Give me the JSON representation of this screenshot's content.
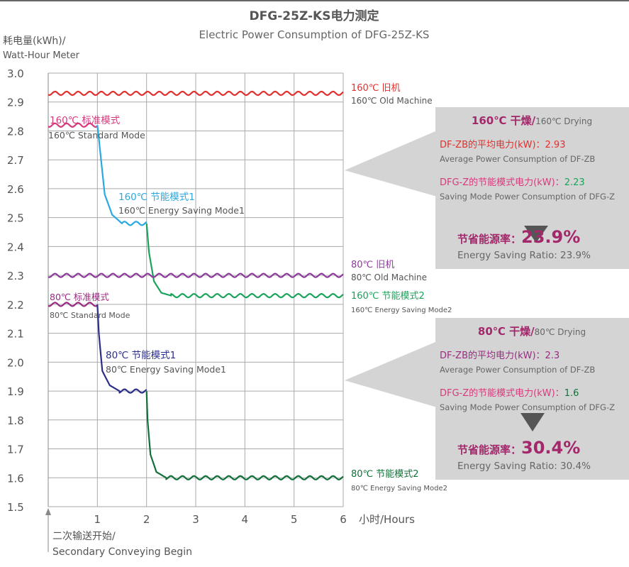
{
  "chart_data": {
    "type": "line",
    "title": "DFG-25Z-KS电力测定",
    "subtitle": "Electric Power Consumption of DFG-25Z-KS",
    "ylabel_line1": "耗电量(kWh)/",
    "ylabel_line2": "Watt-Hour Meter",
    "xlabel": "小时/Hours",
    "xlim": [
      0,
      6
    ],
    "ylim": [
      1.5,
      3.0
    ],
    "x_ticks": [
      "1",
      "2",
      "3",
      "4",
      "5",
      "6"
    ],
    "y_ticks": [
      "3.0",
      "2.9",
      "2.8",
      "2.7",
      "2.6",
      "2.5",
      "2.4",
      "2.3",
      "2.2",
      "2.1",
      "2.0",
      "1.9",
      "1.8",
      "1.7",
      "1.6",
      "1.5"
    ],
    "grid": true,
    "start_note_line1": "二次输送开始/",
    "start_note_line2": "Secondary Conveying Begin",
    "series": [
      {
        "label_cn": "160℃ 旧机",
        "label_en": "160℃ Old Machine",
        "color": "#e2302e",
        "x": [
          0,
          6
        ],
        "y": [
          2.93,
          2.93
        ]
      },
      {
        "label_cn": "160℃  标准模式",
        "label_en": "160℃ Standard Mode",
        "color": "#d63a7c",
        "x": [
          0,
          1
        ],
        "y": [
          2.82,
          2.82
        ]
      },
      {
        "label_cn": "160℃ 节能模式1",
        "label_en": "160℃ Energy Saving Mode1",
        "color": "#2aa9e0",
        "x": [
          1,
          1.05,
          1.15,
          1.3,
          1.5,
          1.7,
          2
        ],
        "y": [
          2.82,
          2.74,
          2.58,
          2.51,
          2.48,
          2.48,
          2.48
        ]
      },
      {
        "label_cn": "160℃ 节能模式2",
        "label_en": "160℃ Energy Saving Mode2",
        "color": "#1aa35a",
        "x": [
          2,
          2.05,
          2.15,
          2.3,
          2.5,
          3,
          6
        ],
        "y": [
          2.48,
          2.38,
          2.28,
          2.24,
          2.23,
          2.23,
          2.23
        ]
      },
      {
        "label_cn": "80℃ 旧机",
        "label_en": "80℃ Old Machine",
        "color": "#8c3b9a",
        "x": [
          0,
          6
        ],
        "y": [
          2.3,
          2.3
        ]
      },
      {
        "label_cn": "80℃ 标准模式",
        "label_en": "80℃ Standard Mode",
        "color": "#9a2a82",
        "x": [
          0,
          1
        ],
        "y": [
          2.2,
          2.2
        ]
      },
      {
        "label_cn": "80℃ 节能模式1",
        "label_en": "80℃ Energy Saving Mode1",
        "color": "#2b2f8a",
        "x": [
          1,
          1.03,
          1.1,
          1.25,
          1.45,
          1.7,
          2
        ],
        "y": [
          2.2,
          2.1,
          1.97,
          1.92,
          1.9,
          1.9,
          1.9
        ]
      },
      {
        "label_cn": "80℃ 节能模式2",
        "label_en": "80℃ Energy Saving Mode2",
        "color": "#12703a",
        "x": [
          2,
          2.02,
          2.08,
          2.2,
          2.4,
          3,
          6
        ],
        "y": [
          1.9,
          1.8,
          1.68,
          1.62,
          1.6,
          1.6,
          1.6
        ]
      }
    ],
    "callouts": [
      {
        "heading_cn": "160℃ 干燥/",
        "heading_en": "160℃ Drying",
        "avg_label_cn": "DF-ZB的平均电力(kW)：",
        "avg_value": "2.93",
        "avg_label_en": "Average Power Consumption of DF-ZB",
        "saving_label_cn": "DFG-Z的节能模式电力(kW)：",
        "saving_value": "2.23",
        "saving_label_en": "Saving Mode Power Consumption of DFG-Z",
        "ratio_label_cn": "节省能源率：",
        "ratio_value": "23.9%",
        "ratio_en": "Energy Saving Ratio: 23.9%"
      },
      {
        "heading_cn": "80℃ 干燥/",
        "heading_en": "80℃ Drying",
        "avg_label_cn": "DF-ZB的平均电力(kW)：",
        "avg_value": "2.3",
        "avg_label_en": "Average Power Consumption of DF-ZB",
        "saving_label_cn": "DFG-Z的节能模式电力(kW)：",
        "saving_value": "1.6",
        "saving_label_en": "Saving Mode Power Consumption of DFG-Z",
        "ratio_label_cn": "节省能源率：",
        "ratio_value": "30.4%",
        "ratio_en": "Energy Saving Ratio: 30.4%"
      }
    ],
    "colors": {
      "callout_bg": "#d4d4d4",
      "grid": "#aaaaaa",
      "ratio": "#a3286b",
      "avg_value": "#e2302e",
      "saving_value_160": "#1aa35a",
      "saving_value_80": "#12703a",
      "saving_label": "#d63a7c",
      "avg_label": "#9a2a82",
      "heading": "#a3286b"
    }
  }
}
